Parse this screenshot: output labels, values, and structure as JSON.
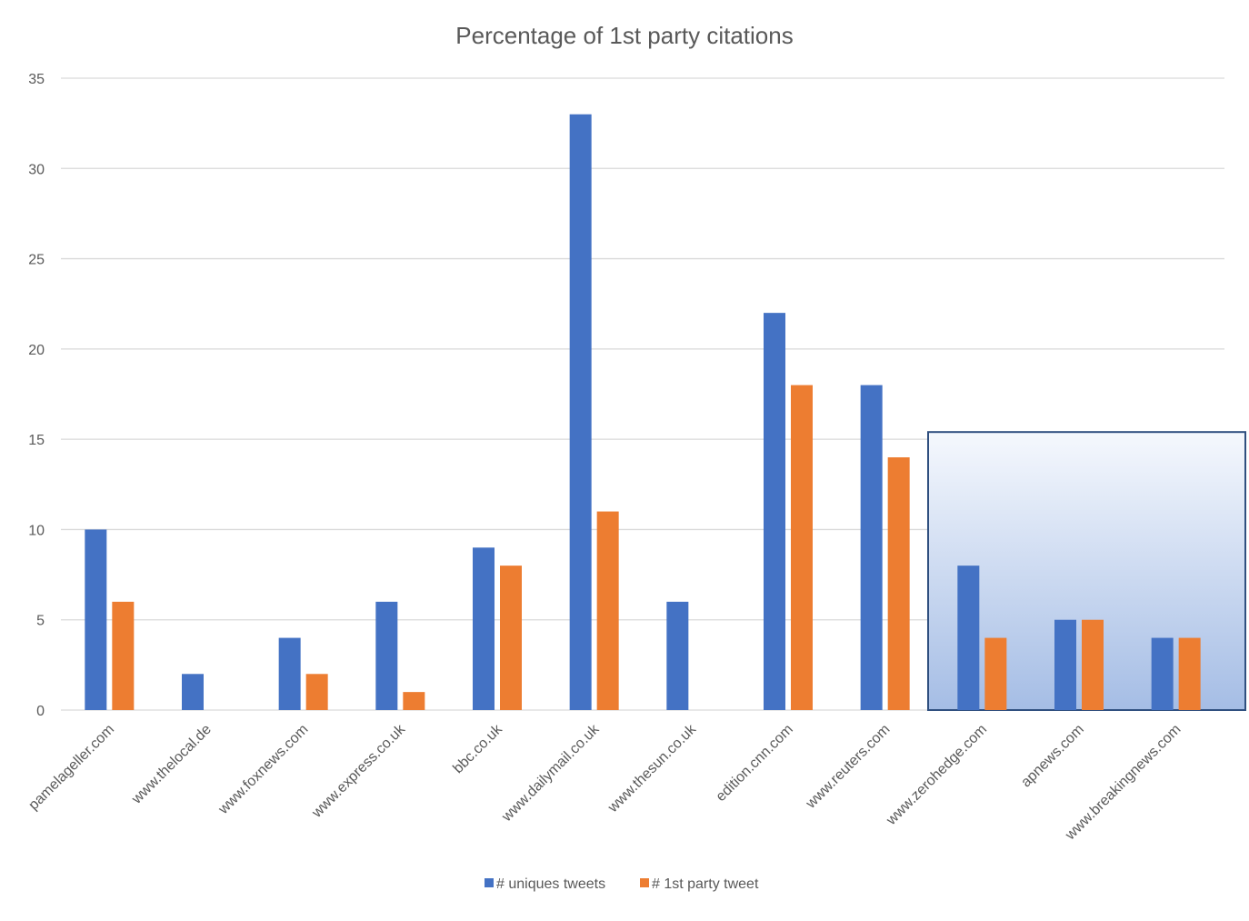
{
  "chart_data": {
    "type": "bar",
    "title": "Percentage of 1st party citations",
    "xlabel": "",
    "ylabel": "",
    "ylim": [
      0,
      35
    ],
    "yticks": [
      0,
      5,
      10,
      15,
      20,
      25,
      30,
      35
    ],
    "grid": true,
    "legend_position": "bottom",
    "categories": [
      "pamelageller.com",
      "www.thelocal.de",
      "www.foxnews.com",
      "www.express.co.uk",
      "bbc.co.uk",
      "www.dailymail.co.uk",
      "www.thesun.co.uk",
      "edition.cnn.com",
      "www.reuters.com",
      "www.zerohedge.com",
      "apnews.com",
      "www.breakingnews.com"
    ],
    "series": [
      {
        "name": "# uniques tweets",
        "color": "#4472c4",
        "values": [
          10,
          2,
          4,
          6,
          9,
          33,
          6,
          22,
          18,
          8,
          5,
          4
        ]
      },
      {
        "name": "# 1st party tweet",
        "color": "#ed7d31",
        "values": [
          6,
          0,
          2,
          1,
          8,
          11,
          0,
          18,
          14,
          4,
          5,
          4
        ]
      }
    ],
    "highlight": {
      "from_category": "www.zerohedge.com",
      "to_category": "www.breakingnews.com",
      "top_value": 15.4,
      "border_color": "#2f4f7f",
      "fill_top": "#f5f8fd",
      "fill_bottom": "#a5bde5"
    }
  }
}
